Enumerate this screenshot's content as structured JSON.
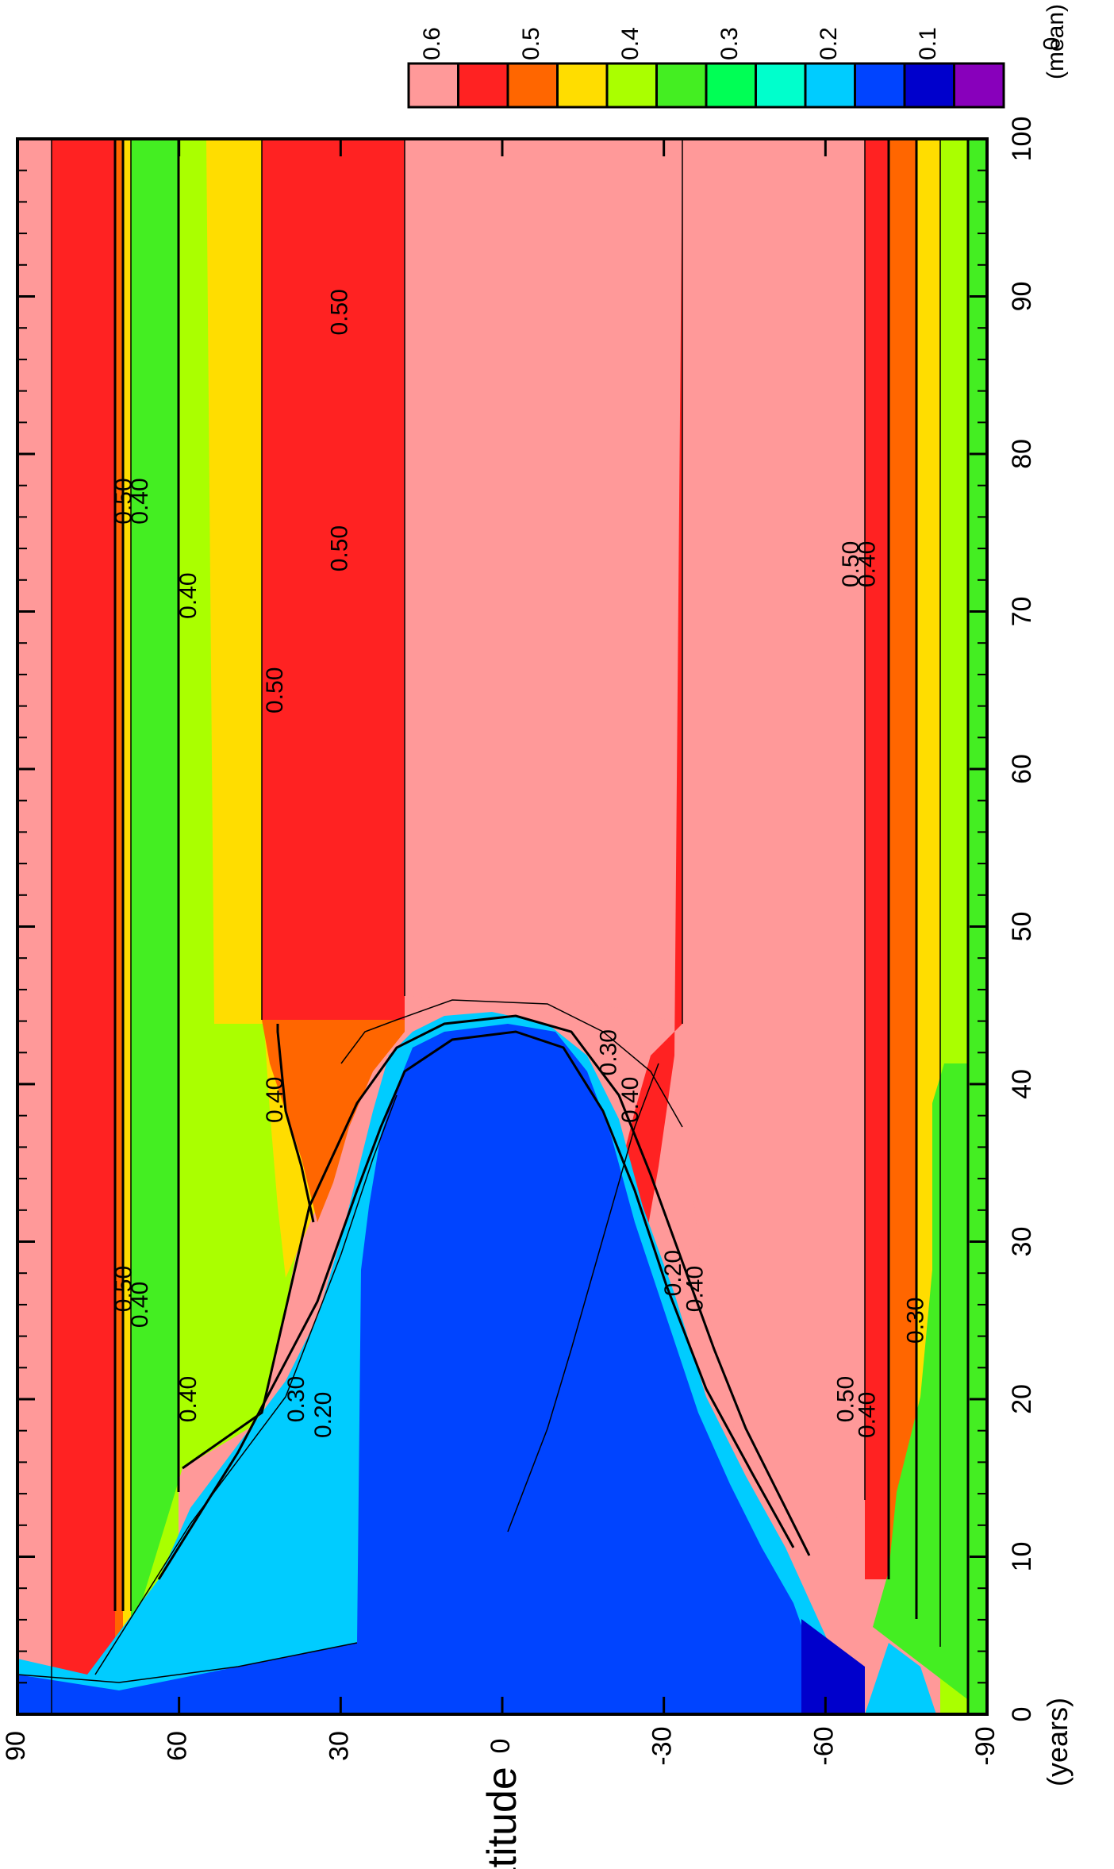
{
  "chart_data": {
    "type": "heatmap",
    "orientation": "rotated 90 degrees counter-clockwise",
    "title": "(mean) l",
    "xlabel": "(years)",
    "ylabel": "latitude",
    "xlim": [
      0,
      100
    ],
    "ylim": [
      -90,
      90
    ],
    "x_ticks": [
      0,
      10,
      20,
      30,
      40,
      50,
      60,
      70,
      80,
      90,
      100
    ],
    "y_ticks": [
      -90,
      -60,
      -30,
      0,
      30,
      60,
      90
    ],
    "y_tick_labels": [
      "-90",
      "-60",
      "-30",
      "0",
      "30",
      "60",
      "90"
    ],
    "colorbar": {
      "levels": [
        0,
        0.1,
        0.2,
        0.3,
        0.4,
        0.5,
        0.6
      ],
      "level_labels": [
        "0",
        "0.1",
        "0.2",
        "0.3",
        "0.4",
        "0.5",
        "0.6"
      ],
      "bin_colors": [
        "#8800bb",
        "#0000cc",
        "#0044ff",
        "#00ccff",
        "#00ffcc",
        "#00ff55",
        "#44ee22",
        "#aaff00",
        "#ffdd00",
        "#ff6600",
        "#ff2222",
        "#ff9999"
      ]
    },
    "contour_labels": [
      {
        "text": "0.50",
        "year": 77,
        "lat": 70
      },
      {
        "text": "0.40",
        "year": 77,
        "lat": 67
      },
      {
        "text": "0.40",
        "year": 71,
        "lat": 58
      },
      {
        "text": "0.50",
        "year": 65,
        "lat": 42
      },
      {
        "text": "0.50",
        "year": 89,
        "lat": 30
      },
      {
        "text": "0.50",
        "year": 74,
        "lat": 30
      },
      {
        "text": "0.50",
        "year": 27,
        "lat": 70
      },
      {
        "text": "0.40",
        "year": 26,
        "lat": 67
      },
      {
        "text": "0.40",
        "year": 20,
        "lat": 58
      },
      {
        "text": "0.40",
        "year": 39,
        "lat": 42
      },
      {
        "text": "0.30",
        "year": 20,
        "lat": 38
      },
      {
        "text": "0.20",
        "year": 19,
        "lat": 33
      },
      {
        "text": "0.30",
        "year": 42,
        "lat": -20
      },
      {
        "text": "0.40",
        "year": 39,
        "lat": -24
      },
      {
        "text": "0.20",
        "year": 28,
        "lat": -32
      },
      {
        "text": "0.40",
        "year": 27,
        "lat": -36
      },
      {
        "text": "0.50",
        "year": 73,
        "lat": -65
      },
      {
        "text": "0.40",
        "year": 73,
        "lat": -68
      },
      {
        "text": "0.50",
        "year": 20,
        "lat": -64
      },
      {
        "text": "0.40",
        "year": 19,
        "lat": -68
      },
      {
        "text": "0.30",
        "year": 25,
        "lat": -77
      }
    ]
  }
}
